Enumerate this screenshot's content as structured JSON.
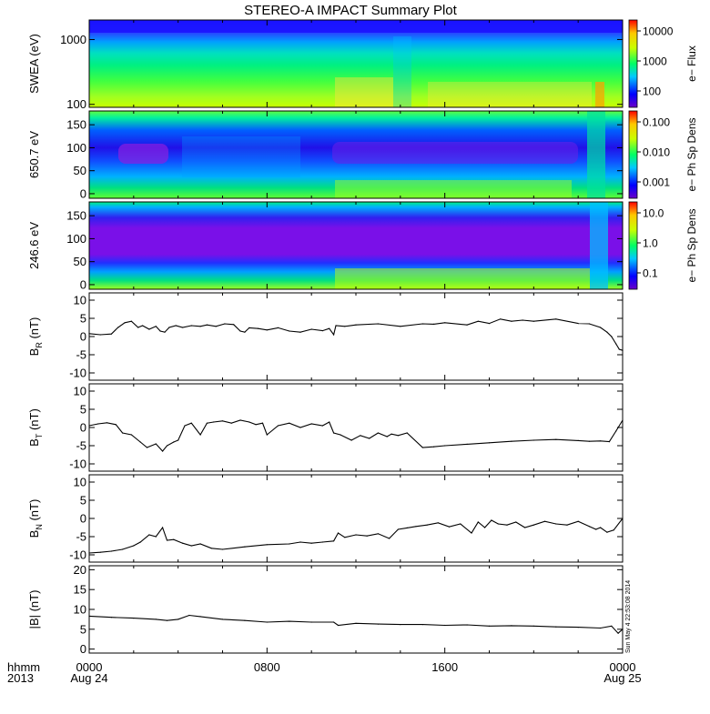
{
  "title": "STEREO-A IMPACT Summary Plot",
  "timestamp": "Sun May  4 22:53:08 2014",
  "x_axis": {
    "row1_label": "hhmm",
    "row2_label": "2013",
    "ticks": [
      {
        "hour": 0,
        "label": "0000",
        "sub": "Aug 24"
      },
      {
        "hour": 8,
        "label": "0800",
        "sub": ""
      },
      {
        "hour": 16,
        "label": "1600",
        "sub": ""
      },
      {
        "hour": 24,
        "label": "0000",
        "sub": "Aug 25"
      }
    ],
    "range_hours": [
      0,
      24
    ]
  },
  "colors": {
    "line": "#000000",
    "spectrogram_scale": [
      "#6a00c8",
      "#0000ff",
      "#00c8ff",
      "#00ff64",
      "#c8ff00",
      "#ffc800",
      "#ff0000"
    ]
  },
  "panels": [
    {
      "ylabel": "SWEA (eV)",
      "scale": "log",
      "ylim": [
        90,
        2000
      ],
      "ticks": [
        "100",
        "1000"
      ],
      "colorbar_label": "e− Flux",
      "colorbar_ticks": [
        "100",
        "1000",
        "10000"
      ]
    },
    {
      "ylabel": "650.7 eV",
      "scale": "linear",
      "ylim": [
        -10,
        180
      ],
      "ticks": [
        "0",
        "50",
        "100",
        "150"
      ],
      "colorbar_label": "e− Ph Sp Dens",
      "colorbar_ticks": [
        "0.001",
        "0.010",
        "0.100"
      ]
    },
    {
      "ylabel": "246.6 eV",
      "scale": "linear",
      "ylim": [
        -10,
        180
      ],
      "ticks": [
        "0",
        "50",
        "100",
        "150"
      ],
      "colorbar_label": "e− Ph Sp Dens",
      "colorbar_ticks": [
        "0.1",
        "1.0",
        "10.0"
      ]
    },
    {
      "ylabel": "B_R (nT)",
      "ylim": [
        -12,
        12
      ],
      "ticks": [
        "-10",
        "-5",
        "0",
        "5",
        "10"
      ]
    },
    {
      "ylabel": "B_T (nT)",
      "ylim": [
        -12,
        12
      ],
      "ticks": [
        "-10",
        "-5",
        "0",
        "5",
        "10"
      ]
    },
    {
      "ylabel": "B_N (nT)",
      "ylim": [
        -12,
        12
      ],
      "ticks": [
        "-10",
        "-5",
        "0",
        "5",
        "10"
      ]
    },
    {
      "ylabel": "|B| (nT)",
      "ylim": [
        -1,
        21
      ],
      "ticks": [
        "0",
        "5",
        "10",
        "15",
        "20"
      ]
    }
  ],
  "chart_data": [
    {
      "type": "heatmap",
      "ylabel": "SWEA (eV)",
      "description_values": "electron energy flux spectrogram, 100-2000 eV",
      "colorbar": {
        "label": "e− Flux",
        "ticks": [
          100,
          1000,
          10000
        ]
      }
    },
    {
      "type": "heatmap",
      "ylabel": "650.7 eV",
      "colorbar": {
        "label": "e− Ph Sp Dens",
        "ticks": [
          0.001,
          0.01,
          0.1
        ]
      }
    },
    {
      "type": "heatmap",
      "ylabel": "246.6 eV",
      "colorbar": {
        "label": "e− Ph Sp Dens",
        "ticks": [
          0.1,
          1.0,
          10.0
        ]
      }
    },
    {
      "type": "line",
      "ylabel": "B_R (nT)",
      "ylim": [
        -12,
        12
      ],
      "x": [
        0,
        0.5,
        1,
        1.3,
        1.6,
        1.9,
        2.2,
        2.4,
        2.7,
        3,
        3.2,
        3.4,
        3.6,
        3.9,
        4.2,
        4.6,
        5,
        5.3,
        5.7,
        6.1,
        6.5,
        6.8,
        7,
        7.2,
        7.6,
        8,
        8.5,
        9,
        9.5,
        10,
        10.5,
        10.8,
        11,
        11.1,
        11.5,
        12,
        13,
        14,
        15,
        15.5,
        16,
        17,
        17.5,
        18,
        18.5,
        19,
        19.5,
        20,
        21,
        22,
        22.5,
        23,
        23.3,
        23.5,
        23.7,
        23.85,
        24
      ],
      "y": [
        0.8,
        0.5,
        0.7,
        2.5,
        3.8,
        4.2,
        2.5,
        3,
        2,
        2.8,
        1.5,
        1.2,
        2.5,
        3,
        2.5,
        3,
        2.8,
        3.2,
        2.8,
        3.5,
        3.3,
        1.5,
        1.2,
        2.4,
        2.2,
        1.8,
        2.4,
        1.5,
        1.2,
        2,
        1.6,
        2.2,
        0.5,
        3,
        2.8,
        3.2,
        3.5,
        2.8,
        3.5,
        3.4,
        3.8,
        3.2,
        4.2,
        3.6,
        4.8,
        4.2,
        4.5,
        4.2,
        4.8,
        3.6,
        3.5,
        2.5,
        1.2,
        0,
        -2,
        -3.5,
        -3.8
      ]
    },
    {
      "type": "line",
      "ylabel": "B_T (nT)",
      "ylim": [
        -12,
        12
      ],
      "x": [
        0,
        0.4,
        0.8,
        1.2,
        1.5,
        1.9,
        2.3,
        2.6,
        3,
        3.3,
        3.5,
        3.8,
        4,
        4.3,
        4.6,
        5,
        5.3,
        5.6,
        6,
        6.4,
        6.8,
        7.2,
        7.5,
        7.8,
        8,
        8.5,
        9,
        9.5,
        10,
        10.5,
        10.8,
        11,
        11.3,
        11.8,
        12.2,
        12.6,
        13,
        13.4,
        13.6,
        13.9,
        14.3,
        15,
        15.5,
        16,
        17,
        18,
        19,
        20,
        21,
        22,
        22.5,
        23,
        23.4,
        23.7,
        24
      ],
      "y": [
        0.5,
        1,
        1.3,
        0.8,
        -1.5,
        -2,
        -4,
        -5.5,
        -4.5,
        -6.5,
        -5,
        -4,
        -3.5,
        0.5,
        1.2,
        -2,
        1.2,
        1.5,
        1.8,
        1.2,
        2,
        1.5,
        0.8,
        1.2,
        -2,
        0.5,
        1.2,
        0,
        1,
        0.5,
        1.5,
        -1.5,
        -2,
        -3.5,
        -2.2,
        -3,
        -1.5,
        -2.5,
        -1.8,
        -2.2,
        -1.5,
        -5.5,
        -5.3,
        -5,
        -4.6,
        -4.2,
        -3.8,
        -3.5,
        -3.3,
        -3.6,
        -3.8,
        -3.7,
        -3.9,
        -1,
        2
      ]
    },
    {
      "type": "line",
      "ylabel": "B_N (nT)",
      "ylim": [
        -12,
        12
      ],
      "x": [
        0,
        0.5,
        1,
        1.5,
        2,
        2.3,
        2.7,
        3,
        3.3,
        3.5,
        3.8,
        4.2,
        4.6,
        5,
        5.5,
        6,
        7,
        8,
        9,
        9.5,
        10,
        10.5,
        11,
        11.2,
        11.5,
        12,
        12.5,
        13,
        13.5,
        13.9,
        14.3,
        14.7,
        15.2,
        15.7,
        16.2,
        16.7,
        17.2,
        17.5,
        17.8,
        18.1,
        18.4,
        18.8,
        19.2,
        19.6,
        20,
        20.5,
        21,
        21.5,
        22,
        22.5,
        22.8,
        23,
        23.3,
        23.6,
        24
      ],
      "y": [
        -9.5,
        -9.3,
        -9,
        -8.5,
        -7.5,
        -6.5,
        -4.5,
        -5,
        -2.5,
        -6,
        -5.8,
        -6.8,
        -7.5,
        -7,
        -8.2,
        -8.5,
        -7.8,
        -7.2,
        -7,
        -6.5,
        -6.8,
        -6.5,
        -6.2,
        -4,
        -5.2,
        -4.5,
        -4.8,
        -4.2,
        -5.5,
        -3,
        -2.6,
        -2.2,
        -1.8,
        -1.2,
        -2.3,
        -1.5,
        -4,
        -1,
        -2.5,
        -0.5,
        -1.5,
        -1.8,
        -1,
        -2.5,
        -1.8,
        -0.8,
        -1.5,
        -1.8,
        -0.8,
        -2.2,
        -3,
        -2.5,
        -3.8,
        -3.2,
        0
      ]
    },
    {
      "type": "line",
      "ylabel": "|B| (nT)",
      "ylim": [
        -1,
        21
      ],
      "x": [
        0,
        1,
        2,
        3,
        3.5,
        4,
        4.5,
        5,
        6,
        7,
        8,
        9,
        10,
        11,
        11.2,
        12,
        13,
        14,
        15,
        16,
        17,
        18,
        19,
        20,
        21,
        22,
        23,
        23.5,
        23.8,
        24
      ],
      "y": [
        8.3,
        8,
        7.8,
        7.5,
        7.2,
        7.5,
        8.5,
        8.2,
        7.5,
        7.2,
        6.8,
        7,
        6.8,
        6.8,
        6,
        6.5,
        6.3,
        6.2,
        6.2,
        6,
        6.1,
        5.8,
        5.9,
        5.8,
        5.6,
        5.5,
        5.3,
        5.8,
        4,
        5
      ]
    }
  ]
}
